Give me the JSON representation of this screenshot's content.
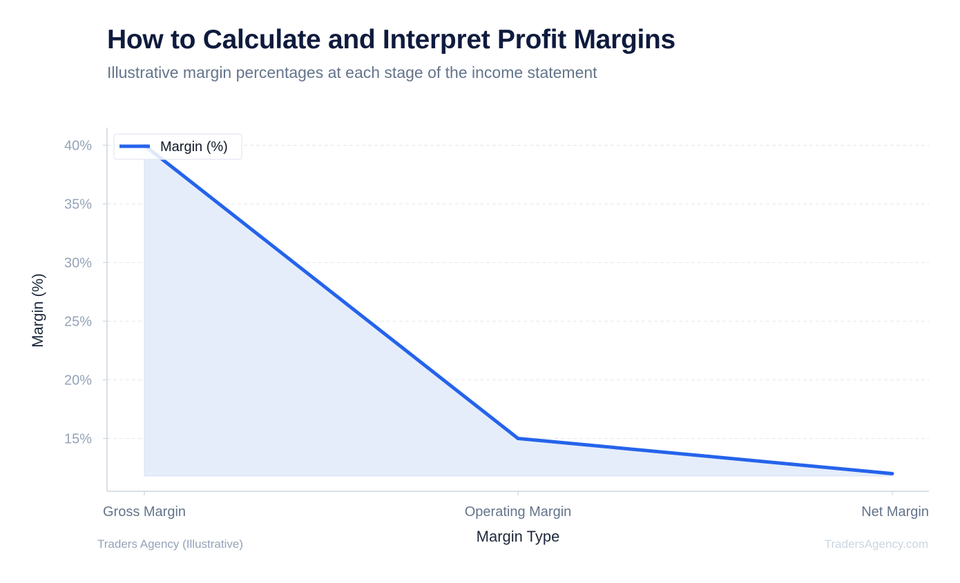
{
  "header": {
    "title": "How to Calculate and Interpret Profit Margins",
    "subtitle": "Illustrative margin percentages at each stage of the income statement"
  },
  "footer": {
    "source": "Traders Agency (Illustrative)",
    "watermark": "TradersAgency.com"
  },
  "colors": {
    "line": "#2563eb",
    "area_fill": "#e5edfb",
    "grid": "#e5e7eb",
    "axis": "#cbd5e1",
    "tick_text": "#94a3b8",
    "x_tick_text": "#64748b",
    "axis_label": "#1e293b"
  },
  "chart_data": {
    "type": "area",
    "title": "How to Calculate and Interpret Profit Margins",
    "subtitle": "Illustrative margin percentages at each stage of the income statement",
    "categories": [
      "Gross Margin",
      "Operating Margin",
      "Net Margin"
    ],
    "series": [
      {
        "name": "Margin (%)",
        "values": [
          40,
          15,
          12
        ]
      }
    ],
    "xlabel": "Margin Type",
    "ylabel": "Margin (%)",
    "ylim": [
      10.5,
      41.5
    ],
    "yticks": [
      15,
      20,
      25,
      30,
      35,
      40
    ],
    "ytick_labels": [
      "15%",
      "20%",
      "25%",
      "30%",
      "35%",
      "40%"
    ],
    "area_baseline": 11.8,
    "grid": "horizontal dashed",
    "legend": "top-left"
  }
}
